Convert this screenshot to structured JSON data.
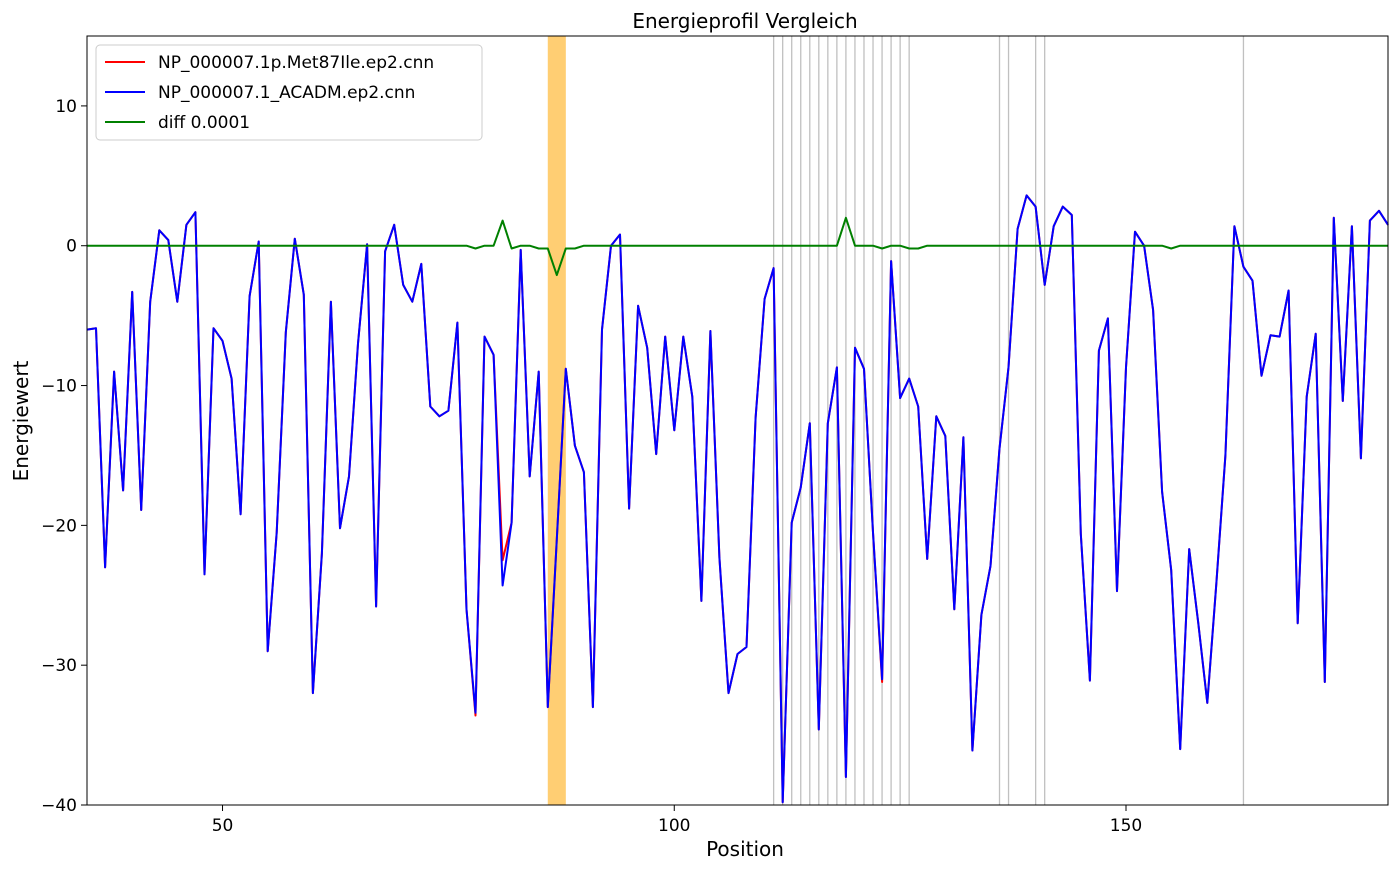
{
  "chart_data": {
    "type": "line",
    "title": "Energieprofil Vergleich",
    "xlabel": "Position",
    "ylabel": "Energiewert",
    "xlim": [
      35,
      179
    ],
    "ylim": [
      -40,
      15
    ],
    "xticks": [
      50,
      100,
      150
    ],
    "yticks": [
      -40,
      -30,
      -20,
      -10,
      0,
      10
    ],
    "xtick_labels": [
      "50",
      "100",
      "150"
    ],
    "ytick_labels": [
      "−40",
      "−30",
      "−20",
      "−10",
      "0",
      "10"
    ],
    "grid": false,
    "legend_position": "top-left",
    "highlight_span": {
      "x0": 86,
      "x1": 88,
      "color": "#ffa500"
    },
    "vlines": [
      111,
      112,
      113,
      114,
      115,
      116,
      117,
      118,
      119,
      120,
      121,
      122,
      123,
      124,
      125,
      126,
      136,
      137,
      140,
      141,
      163
    ],
    "vline_color": "#c0c0c0",
    "x": [
      35,
      36,
      37,
      38,
      39,
      40,
      41,
      42,
      43,
      44,
      45,
      46,
      47,
      48,
      49,
      50,
      51,
      52,
      53,
      54,
      55,
      56,
      57,
      58,
      59,
      60,
      61,
      62,
      63,
      64,
      65,
      66,
      67,
      68,
      69,
      70,
      71,
      72,
      73,
      74,
      75,
      76,
      77,
      78,
      79,
      80,
      81,
      82,
      83,
      84,
      85,
      86,
      87,
      88,
      89,
      90,
      91,
      92,
      93,
      94,
      95,
      96,
      97,
      98,
      99,
      100,
      101,
      102,
      103,
      104,
      105,
      106,
      107,
      108,
      109,
      110,
      111,
      112,
      113,
      114,
      115,
      116,
      117,
      118,
      119,
      120,
      121,
      122,
      123,
      124,
      125,
      126,
      127,
      128,
      129,
      130,
      131,
      132,
      133,
      134,
      135,
      136,
      137,
      138,
      139,
      140,
      141,
      142,
      143,
      144,
      145,
      146,
      147,
      148,
      149,
      150,
      151,
      152,
      153,
      154,
      155,
      156,
      157,
      158,
      159,
      160,
      161,
      162,
      163,
      164,
      165,
      166,
      167,
      168,
      169,
      170,
      171,
      172,
      173,
      174,
      175,
      176,
      177,
      178,
      179
    ],
    "series": [
      {
        "name": "NP_000007.1p.Met87Ile.ep2.cnn",
        "color": "#ff0000",
        "values": [
          -6.0,
          -5.9,
          -23.0,
          -9.0,
          -17.5,
          -3.3,
          -18.9,
          -4.0,
          1.1,
          0.4,
          -4.0,
          1.5,
          2.4,
          -23.5,
          -5.9,
          -6.8,
          -9.5,
          -19.2,
          -3.6,
          0.3,
          -29.0,
          -20.5,
          -6.2,
          0.5,
          -3.5,
          -32.0,
          -22.0,
          -4.0,
          -20.2,
          -16.5,
          -7.0,
          0.1,
          -25.8,
          -0.4,
          1.5,
          -2.8,
          -4.0,
          -1.3,
          -11.5,
          -12.2,
          -11.8,
          -5.5,
          -26.0,
          -33.6,
          -6.5,
          -7.8,
          -22.5,
          -19.8,
          -0.3,
          -16.5,
          -9.0,
          -33.0,
          -21.0,
          -8.8,
          -14.3,
          -16.2,
          -33.0,
          -6.0,
          0.0,
          0.8,
          -18.8,
          -4.3,
          -7.3,
          -14.9,
          -6.5,
          -13.2,
          -6.5,
          -10.8,
          -25.4,
          -6.1,
          -22.3,
          -32.0,
          -29.2,
          -28.7,
          -12.3,
          -3.8,
          -1.6,
          -39.8,
          -19.8,
          -17.3,
          -12.7,
          -34.6,
          -12.7,
          -8.7,
          -38.0,
          -7.3,
          -8.8,
          -20.5,
          -31.2,
          -1.1,
          -10.9,
          -9.5,
          -11.5,
          -22.4,
          -12.2,
          -13.6,
          -26.0,
          -13.7,
          -36.1,
          -26.4,
          -22.9,
          -14.5,
          -8.7,
          1.2,
          3.6,
          2.8,
          -2.8,
          1.4,
          2.8,
          2.2,
          -20.6,
          -31.1,
          -7.5,
          -5.2,
          -24.7,
          -8.7,
          1.0,
          0.0,
          -4.6,
          -17.6,
          -23.2,
          -36.0,
          -21.7,
          -27.0,
          -32.7,
          -24.2,
          -15.0,
          1.4,
          -1.5,
          -2.5,
          -9.3,
          -6.4,
          -6.5,
          -3.2,
          -27.0,
          -10.8,
          -6.3,
          -31.2,
          2.0,
          -11.1,
          1.4,
          -15.2,
          1.8,
          2.5,
          1.5
        ]
      },
      {
        "name": "NP_000007.1_ACADM.ep2.cnn",
        "color": "#0000ff",
        "values": [
          -6.0,
          -5.9,
          -23.0,
          -9.0,
          -17.5,
          -3.3,
          -18.9,
          -4.0,
          1.1,
          0.4,
          -4.0,
          1.5,
          2.4,
          -23.5,
          -5.9,
          -6.8,
          -9.5,
          -19.2,
          -3.6,
          0.3,
          -29.0,
          -20.5,
          -6.2,
          0.5,
          -3.5,
          -32.0,
          -22.0,
          -4.0,
          -20.2,
          -16.5,
          -7.0,
          0.1,
          -25.8,
          -0.4,
          1.5,
          -2.8,
          -4.0,
          -1.3,
          -11.5,
          -12.2,
          -11.8,
          -5.5,
          -26.0,
          -33.4,
          -6.5,
          -7.8,
          -24.3,
          -19.8,
          -0.3,
          -16.5,
          -9.0,
          -33.0,
          -21.0,
          -8.8,
          -14.3,
          -16.2,
          -33.0,
          -6.0,
          0.0,
          0.8,
          -18.8,
          -4.3,
          -7.3,
          -14.9,
          -6.5,
          -13.2,
          -6.5,
          -10.8,
          -25.4,
          -6.1,
          -22.3,
          -32.0,
          -29.2,
          -28.7,
          -12.3,
          -3.8,
          -1.6,
          -39.8,
          -19.8,
          -17.3,
          -12.7,
          -34.6,
          -12.7,
          -8.7,
          -38.0,
          -7.3,
          -8.8,
          -20.5,
          -31.0,
          -1.1,
          -10.9,
          -9.5,
          -11.5,
          -22.4,
          -12.2,
          -13.6,
          -26.0,
          -13.7,
          -36.1,
          -26.4,
          -22.9,
          -14.5,
          -8.7,
          1.2,
          3.6,
          2.8,
          -2.8,
          1.4,
          2.8,
          2.2,
          -20.6,
          -31.1,
          -7.5,
          -5.2,
          -24.7,
          -8.7,
          1.0,
          0.0,
          -4.6,
          -17.6,
          -23.2,
          -36.0,
          -21.7,
          -27.0,
          -32.7,
          -24.2,
          -15.0,
          1.4,
          -1.5,
          -2.5,
          -9.3,
          -6.4,
          -6.5,
          -3.2,
          -27.0,
          -10.8,
          -6.3,
          -31.2,
          2.0,
          -11.1,
          1.4,
          -15.2,
          1.8,
          2.5,
          1.5
        ]
      },
      {
        "name": "diff 0.0001",
        "color": "#008000",
        "values": [
          0,
          0,
          0,
          0,
          0,
          0,
          0,
          0,
          0,
          0,
          0,
          0,
          0,
          0,
          0,
          0,
          0,
          0,
          0,
          0,
          0,
          0,
          0,
          0,
          0,
          0,
          0,
          0,
          0,
          0,
          0,
          0,
          0,
          0,
          0,
          0,
          0,
          0,
          0,
          0,
          0,
          0,
          0,
          -0.2,
          0,
          0,
          1.8,
          -0.2,
          0,
          0,
          -0.2,
          -0.2,
          -2.1,
          -0.2,
          -0.2,
          0,
          0,
          0,
          0,
          0,
          0,
          0,
          0,
          0,
          0,
          0,
          0,
          0,
          0,
          0,
          0,
          0,
          0,
          0,
          0,
          0,
          0,
          0,
          0,
          0,
          0,
          0,
          0,
          0,
          2.0,
          0,
          0,
          0,
          -0.2,
          0,
          0,
          -0.2,
          -0.2,
          0,
          0,
          0,
          0,
          0,
          0,
          0,
          0,
          0,
          0,
          0,
          0,
          0,
          0,
          0,
          0,
          0,
          0,
          0,
          0,
          0,
          0,
          0,
          0,
          0,
          0,
          0,
          -0.2,
          0,
          0,
          0,
          0,
          0,
          0,
          0,
          0,
          0,
          0,
          0,
          0,
          0,
          0,
          0,
          0,
          0,
          0,
          0,
          0,
          0,
          0,
          0,
          0
        ]
      }
    ]
  }
}
